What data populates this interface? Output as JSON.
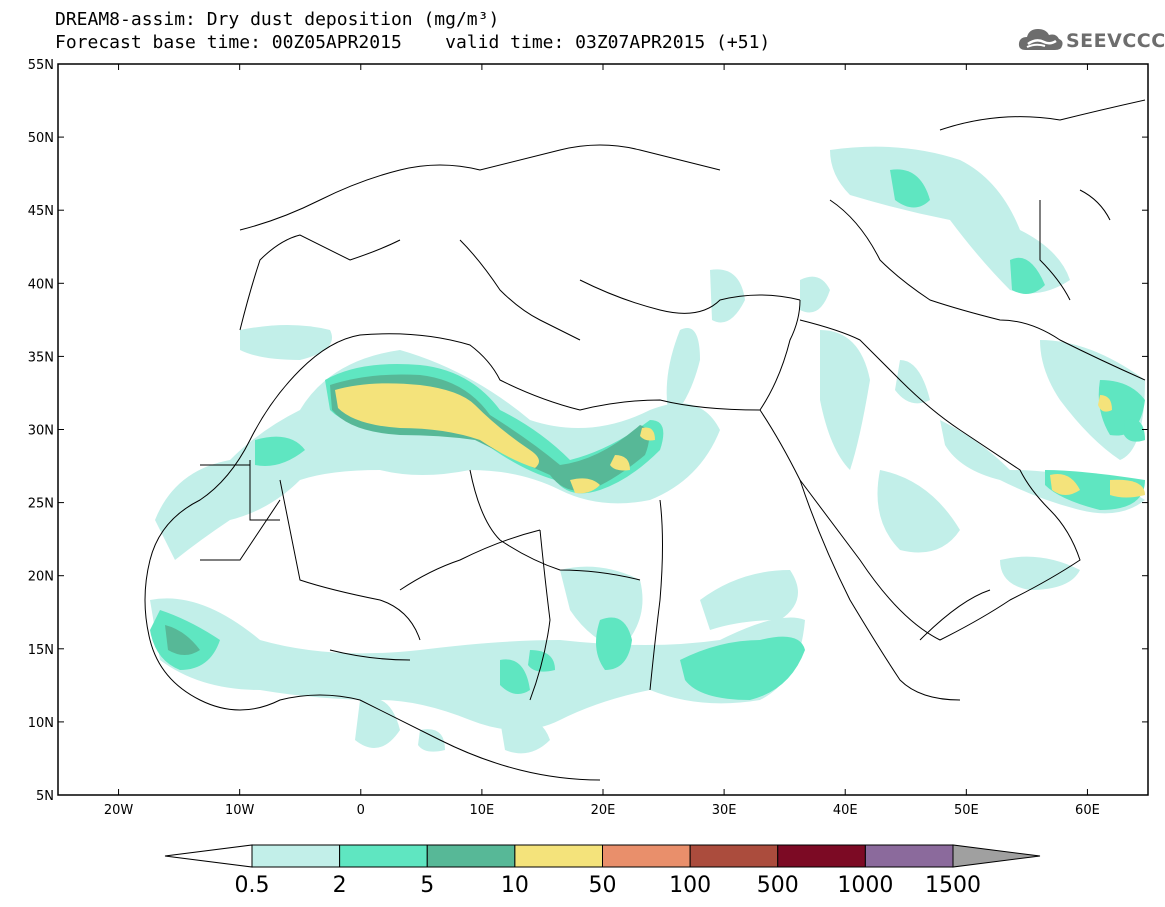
{
  "header": {
    "title": "DREAM8-assim: Dry dust deposition (mg/m³)",
    "subtitle": "Forecast base time: 00Z05APR2015    valid time: 03Z07APR2015 (+51)"
  },
  "logo": {
    "text": "SEEVCCC",
    "icon": "cloud-icon"
  },
  "map": {
    "lat_range": [
      5,
      55
    ],
    "lon_range": [
      -25,
      65
    ],
    "lat_ticks": [
      "55N",
      "50N",
      "45N",
      "40N",
      "35N",
      "30N",
      "25N",
      "20N",
      "15N",
      "10N",
      "5N"
    ],
    "lon_ticks": [
      "20W",
      "10W",
      "0",
      "10E",
      "20E",
      "30E",
      "40E",
      "50E",
      "60E"
    ]
  },
  "colorbar": {
    "labels": [
      "0.5",
      "2",
      "5",
      "10",
      "50",
      "100",
      "500",
      "1000",
      "1500"
    ],
    "colors": [
      "#c2efe9",
      "#5fe6c1",
      "#57b897",
      "#f4e37b",
      "#e98f6b",
      "#ab4c3d",
      "#7c0a24",
      "#8b6a9c",
      "#a0a0a0"
    ],
    "min_color": "#ffffff",
    "max_color": "#a0a0a0"
  },
  "legend_palette": {
    "level_05": "#c2efe9",
    "level_2": "#5fe6c1",
    "level_5": "#57b897",
    "level_10": "#f4e37b"
  }
}
